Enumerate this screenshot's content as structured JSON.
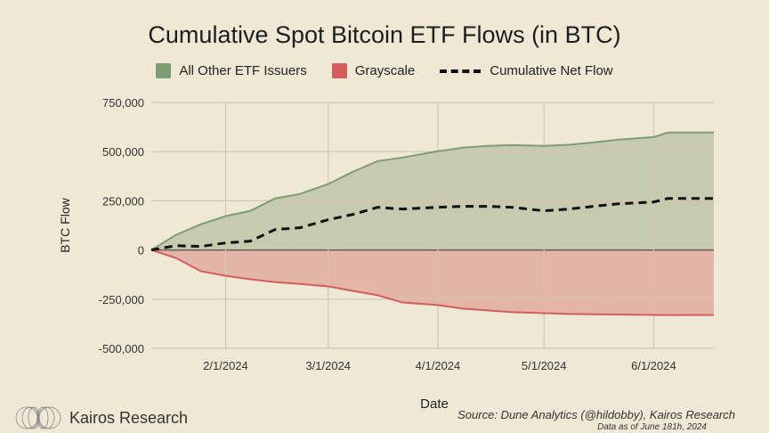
{
  "chart_data": {
    "type": "area",
    "title": "Cumulative Spot Bitcoin ETF Flows (in BTC)",
    "xlabel": "Date",
    "ylabel": "BTC Flow",
    "ylim": [
      -500000,
      750000
    ],
    "yticks": [
      750000,
      500000,
      250000,
      0,
      -250000,
      -500000
    ],
    "ytick_labels": [
      "750,000",
      "500,000",
      "250,000",
      "0",
      "-250,000",
      "-500,000"
    ],
    "xlim": [
      "2024-01-11",
      "2024-06-18"
    ],
    "xticks": [
      "2024-02-01",
      "2024-03-01",
      "2024-04-01",
      "2024-05-01",
      "2024-06-01"
    ],
    "xtick_labels": [
      "2/1/2024",
      "3/1/2024",
      "4/1/2024",
      "5/1/2024",
      "6/1/2024"
    ],
    "grid": true,
    "legend_placement": "top",
    "x": [
      "2024-01-11",
      "2024-01-18",
      "2024-01-25",
      "2024-02-01",
      "2024-02-08",
      "2024-02-15",
      "2024-02-22",
      "2024-03-01",
      "2024-03-08",
      "2024-03-15",
      "2024-03-22",
      "2024-04-01",
      "2024-04-08",
      "2024-04-15",
      "2024-04-22",
      "2024-05-01",
      "2024-05-08",
      "2024-05-15",
      "2024-05-22",
      "2024-06-01",
      "2024-06-05",
      "2024-06-18"
    ],
    "series": [
      {
        "name": "All Other ETF Issuers",
        "style": "area",
        "color": "#7e9c73",
        "fill": "#c6cbb0",
        "values": [
          0,
          77000,
          131000,
          172000,
          199000,
          262000,
          285000,
          335000,
          398000,
          452000,
          470000,
          502000,
          520000,
          529000,
          533000,
          529000,
          535000,
          547000,
          561000,
          574000,
          597000,
          597000
        ]
      },
      {
        "name": "Grayscale",
        "style": "area",
        "color": "#d35c5c",
        "fill": "#e4b4a6",
        "values": [
          0,
          -41000,
          -108000,
          -131000,
          -149000,
          -163000,
          -172000,
          -185000,
          -208000,
          -230000,
          -267000,
          -280000,
          -298000,
          -307000,
          -316000,
          -321000,
          -325000,
          -327000,
          -328000,
          -330000,
          -331000,
          -330000
        ]
      },
      {
        "name": "Cumulative Net Flow",
        "style": "dashed-line",
        "color": "#111111",
        "values": [
          0,
          22000,
          18000,
          36000,
          45000,
          104000,
          113000,
          154000,
          181000,
          217000,
          208000,
          217000,
          222000,
          222000,
          217000,
          199000,
          208000,
          222000,
          235000,
          244000,
          262000,
          262000
        ]
      }
    ]
  },
  "footer": {
    "brand": "Kairos Research",
    "source": "Source: Dune Analytics (@hildobby), Kairos Research",
    "as_of": "Data as of June 181h, 2024"
  },
  "colors": {
    "background": "#efe8d5",
    "grid": "#cfc6b0"
  }
}
